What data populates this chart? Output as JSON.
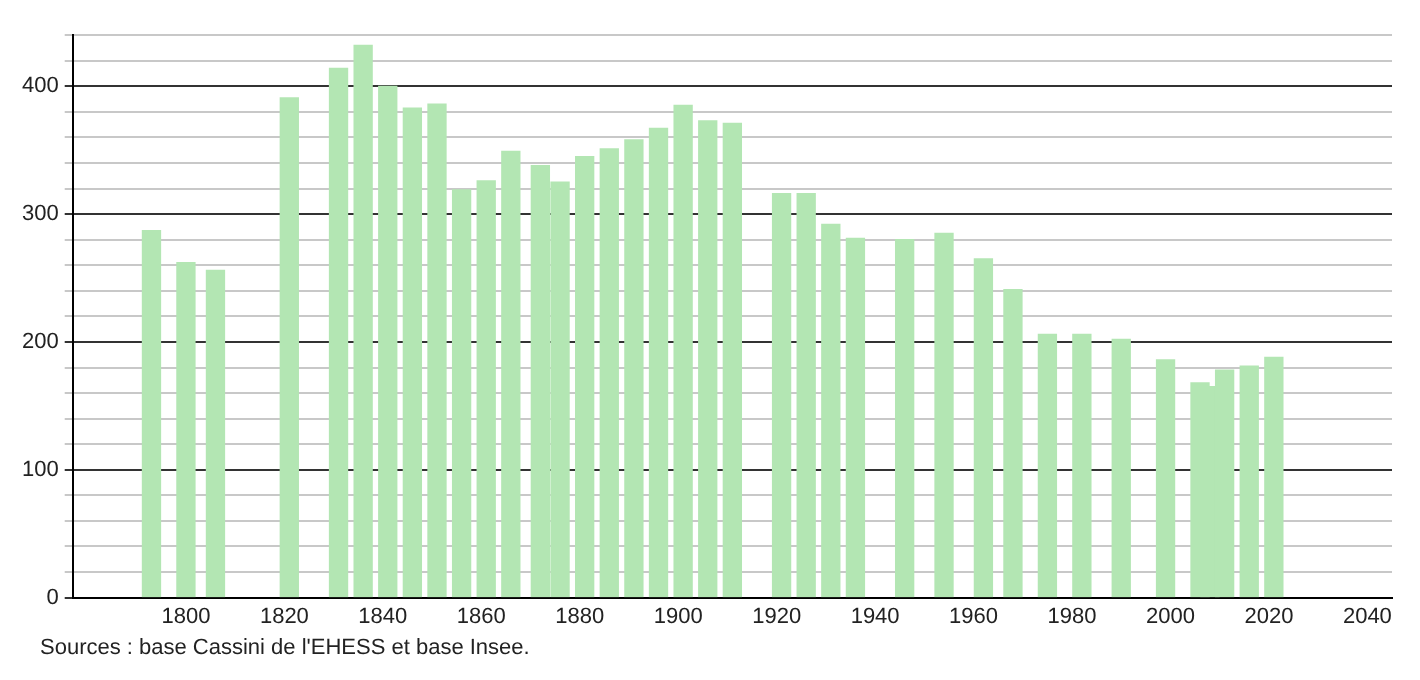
{
  "chart_data": {
    "type": "bar",
    "x": [
      1793,
      1800,
      1806,
      1821,
      1831,
      1836,
      1841,
      1846,
      1851,
      1856,
      1861,
      1866,
      1872,
      1876,
      1881,
      1886,
      1891,
      1896,
      1901,
      1906,
      1911,
      1921,
      1926,
      1931,
      1936,
      1946,
      1954,
      1962,
      1968,
      1975,
      1982,
      1990,
      1999,
      2006,
      2008,
      2011,
      2016,
      2021
    ],
    "values": [
      287,
      262,
      256,
      391,
      414,
      432,
      400,
      383,
      386,
      319,
      326,
      349,
      338,
      325,
      345,
      351,
      358,
      367,
      385,
      373,
      371,
      316,
      316,
      292,
      281,
      280,
      285,
      265,
      241,
      206,
      206,
      202,
      186,
      168,
      165,
      178,
      181,
      188
    ],
    "color": "#b3e6b3",
    "xlim": [
      1777,
      2045
    ],
    "xticks": [
      1800,
      1820,
      1840,
      1860,
      1880,
      1900,
      1920,
      1940,
      1960,
      1980,
      2000,
      2020,
      2040
    ],
    "ylim": [
      0,
      440
    ],
    "yticks": [
      0,
      {
        "value": 20,
        "label": null
      },
      {
        "value": 40,
        "label": null
      },
      {
        "value": 60,
        "label": null
      },
      {
        "value": 80,
        "label": null
      },
      100,
      {
        "value": 120,
        "label": null
      },
      {
        "value": 140,
        "label": null
      },
      {
        "value": 160,
        "label": null
      },
      {
        "value": 180,
        "label": null
      },
      200,
      {
        "value": 220,
        "label": null
      },
      {
        "value": 240,
        "label": null
      },
      {
        "value": 260,
        "label": null
      },
      {
        "value": 280,
        "label": null
      },
      300,
      {
        "value": 320,
        "label": null
      },
      {
        "value": 340,
        "label": null
      },
      {
        "value": 360,
        "label": null
      },
      {
        "value": 380,
        "label": null
      },
      400,
      {
        "value": 420,
        "label": null
      },
      {
        "value": 440,
        "label": null
      }
    ],
    "grid": "y",
    "legend": false,
    "annotations": [
      "Sources : base Cassini de l'EHESS et base Insee."
    ]
  }
}
